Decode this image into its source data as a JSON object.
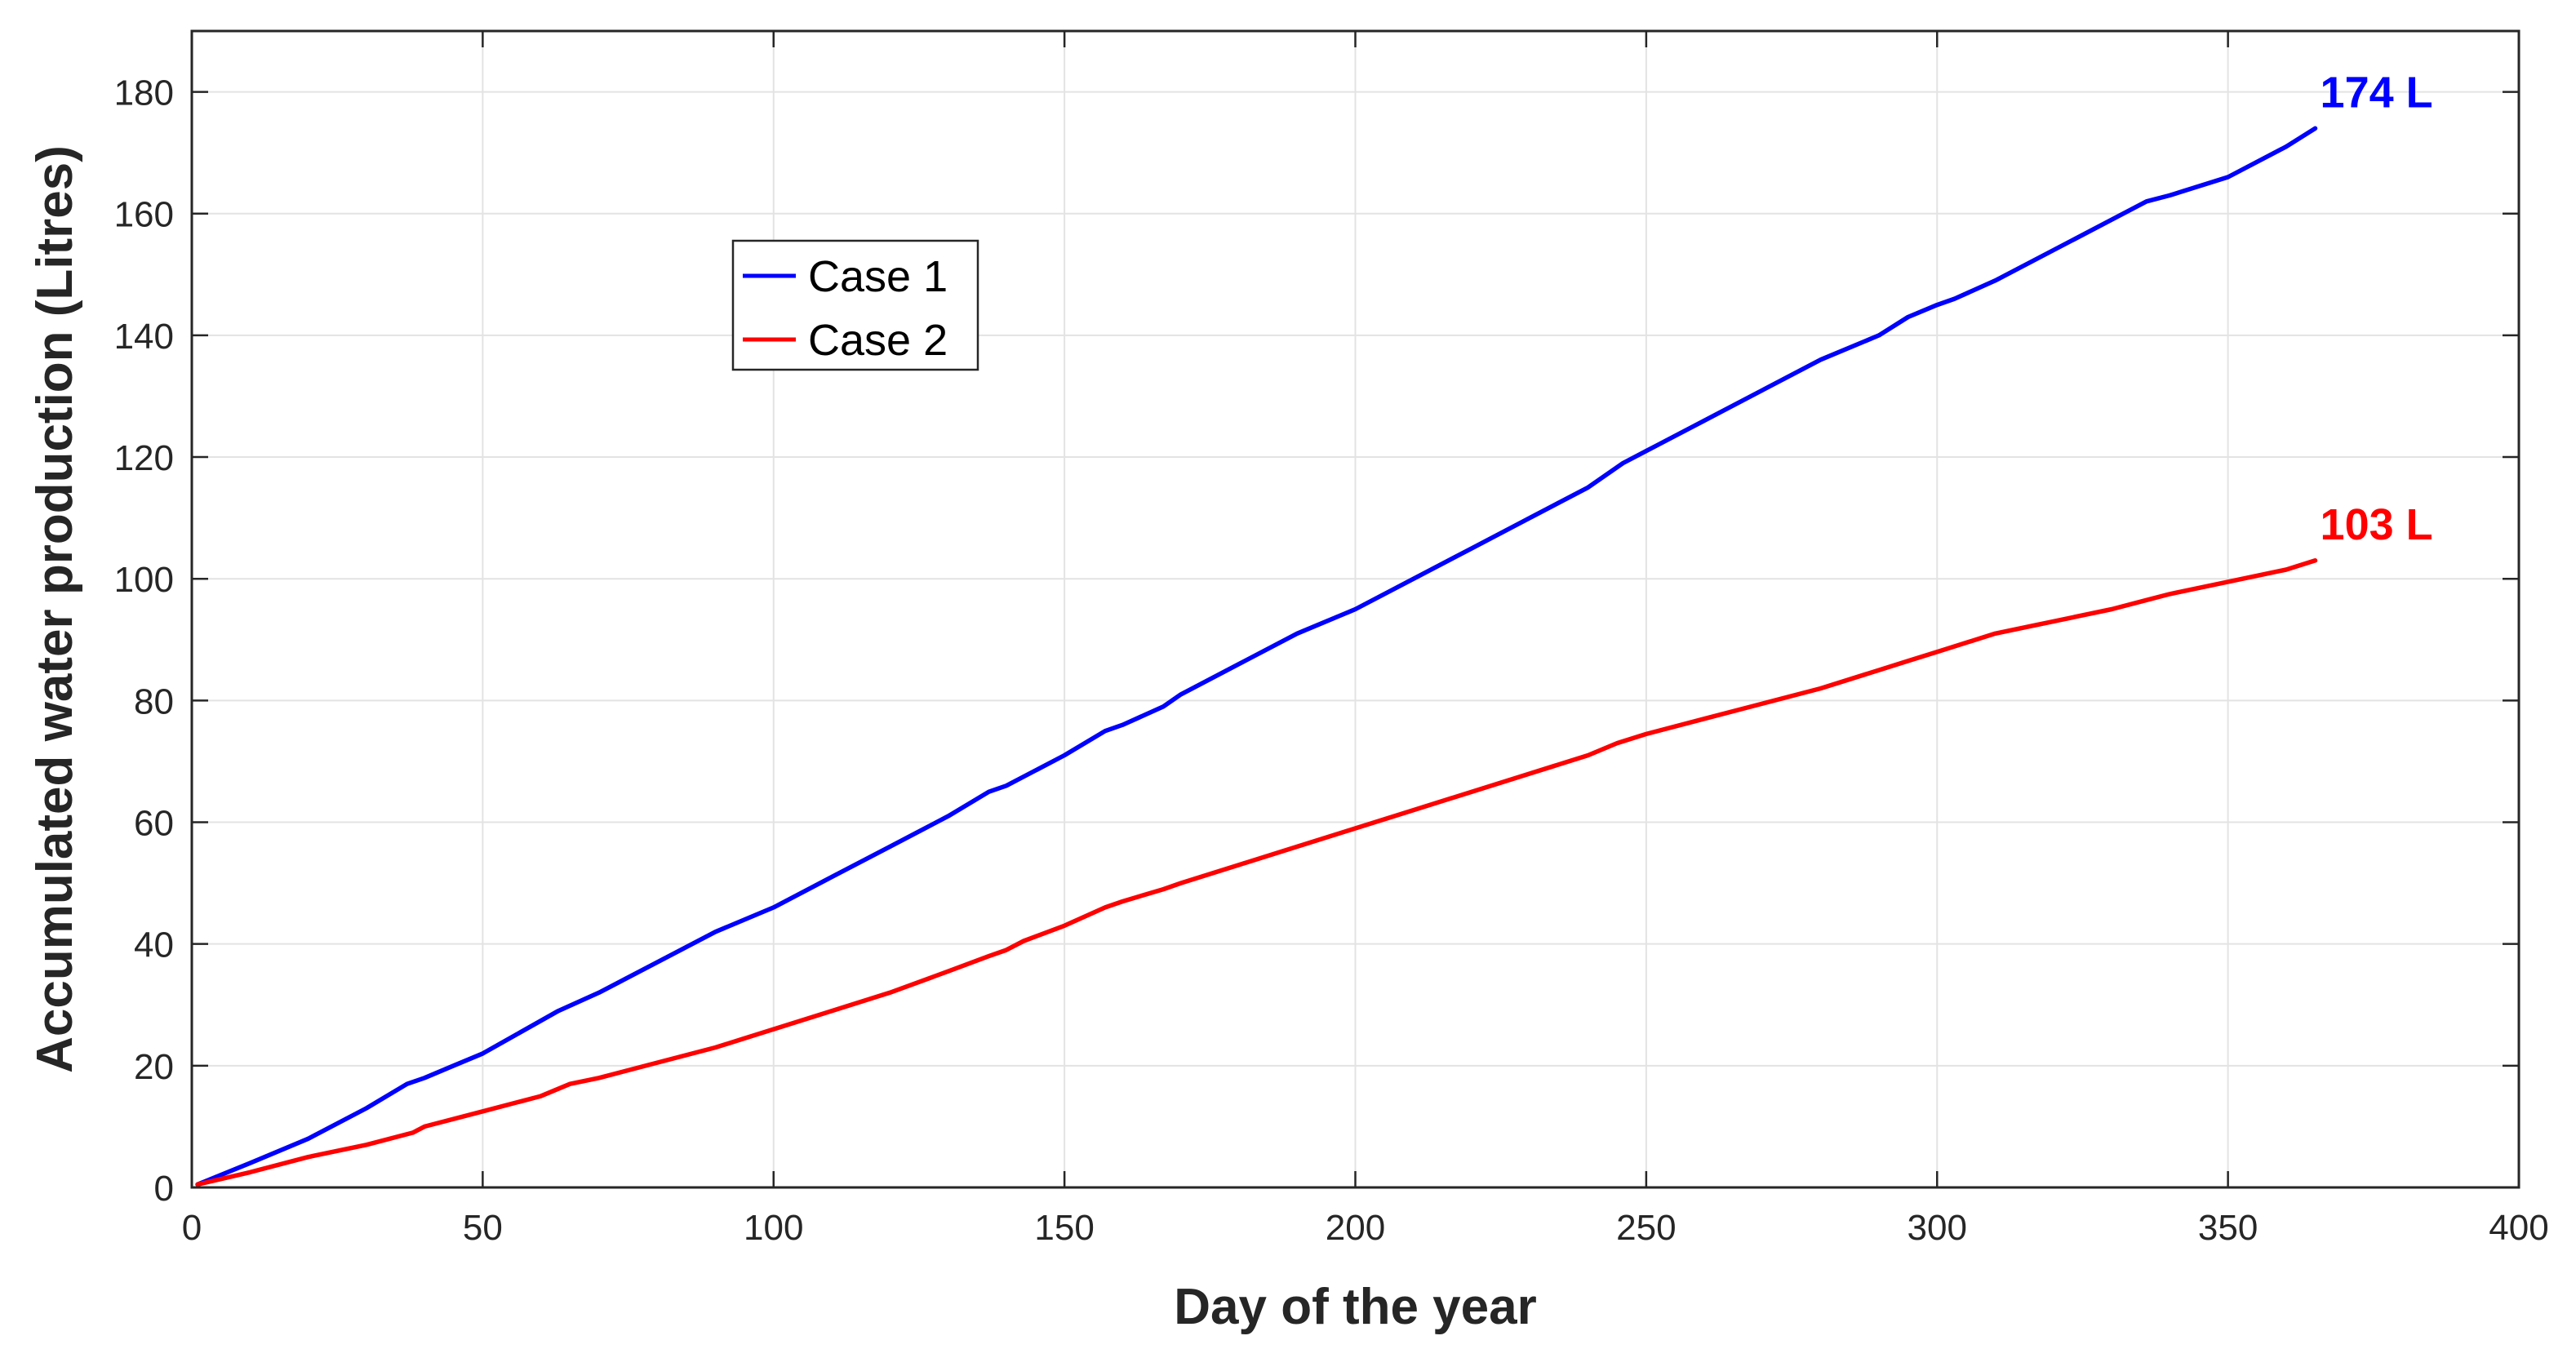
{
  "chart_data": {
    "type": "line",
    "title": "",
    "xlabel": "Day of the year",
    "ylabel": "Accumulated water production (Litres)",
    "xlim": [
      0,
      400
    ],
    "ylim": [
      0,
      190
    ],
    "xticks": [
      0,
      50,
      100,
      150,
      200,
      250,
      300,
      350,
      400
    ],
    "yticks": [
      0,
      20,
      40,
      60,
      80,
      100,
      120,
      140,
      160,
      180
    ],
    "grid": true,
    "legend_position": "upper-left-center",
    "series": [
      {
        "name": "Case 1",
        "color": "#0000ff",
        "end_label": "174 L",
        "x": [
          1,
          10,
          20,
          30,
          37,
          40,
          45,
          50,
          63,
          70,
          80,
          90,
          100,
          110,
          120,
          130,
          137,
          140,
          150,
          157,
          160,
          167,
          170,
          180,
          190,
          200,
          210,
          220,
          230,
          240,
          246,
          250,
          260,
          270,
          280,
          290,
          295,
          300,
          303,
          310,
          320,
          330,
          336,
          340,
          350,
          360,
          365
        ],
        "y": [
          0.5,
          4,
          8,
          13,
          17,
          18,
          20,
          22,
          29,
          32,
          37,
          42,
          46,
          51,
          56,
          61,
          65,
          66,
          71,
          75,
          76,
          79,
          81,
          86,
          91,
          95,
          100,
          105,
          110,
          115,
          119,
          121,
          126,
          131,
          136,
          140,
          143,
          145,
          146,
          149,
          154,
          159,
          162,
          163,
          166,
          171,
          174
        ]
      },
      {
        "name": "Case 2",
        "color": "#ff0000",
        "end_label": "103 L",
        "x": [
          1,
          10,
          20,
          30,
          38,
          40,
          50,
          60,
          65,
          70,
          80,
          90,
          100,
          110,
          120,
          130,
          137,
          140,
          143,
          150,
          157,
          160,
          167,
          170,
          180,
          190,
          200,
          210,
          220,
          230,
          240,
          245,
          250,
          260,
          270,
          280,
          290,
          295,
          300,
          310,
          320,
          330,
          336,
          340,
          350,
          360,
          365
        ],
        "y": [
          0.5,
          2.5,
          5,
          7,
          9,
          10,
          12.5,
          15,
          17,
          18,
          20.5,
          23,
          26,
          29,
          32,
          35.5,
          38,
          39,
          40.5,
          43,
          46,
          47,
          49,
          50,
          53,
          56,
          59,
          62,
          65,
          68,
          71,
          73,
          74.5,
          77,
          79.5,
          82,
          85,
          86.5,
          88,
          91,
          93,
          95,
          96.5,
          97.5,
          99.5,
          101.5,
          103
        ]
      }
    ]
  }
}
